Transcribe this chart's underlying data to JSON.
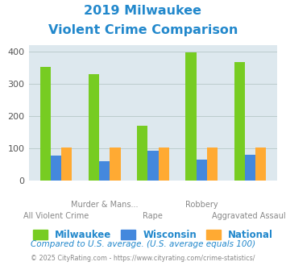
{
  "title_line1": "2019 Milwaukee",
  "title_line2": "Violent Crime Comparison",
  "categories": [
    "All Violent Crime",
    "Murder & Mans...",
    "Rape",
    "Robbery",
    "Aggravated Assault"
  ],
  "milwaukee": [
    353,
    330,
    170,
    397,
    367
  ],
  "wisconsin": [
    78,
    62,
    93,
    65,
    80
  ],
  "national": [
    103,
    104,
    104,
    104,
    104
  ],
  "milwaukee_color": "#77cc22",
  "wisconsin_color": "#4488dd",
  "national_color": "#ffaa33",
  "bg_color": "#dde8ee",
  "title_color": "#2288cc",
  "xlabel_color": "#888888",
  "legend_milwaukee": "Milwaukee",
  "legend_wisconsin": "Wisconsin",
  "legend_national": "National",
  "footnote1": "Compared to U.S. average. (U.S. average equals 100)",
  "footnote2": "© 2025 CityRating.com - https://www.cityrating.com/crime-statistics/",
  "ylim": [
    0,
    420
  ],
  "yticks": [
    0,
    100,
    200,
    300,
    400
  ],
  "bar_width": 0.22,
  "figsize": [
    3.55,
    3.3
  ],
  "dpi": 100
}
